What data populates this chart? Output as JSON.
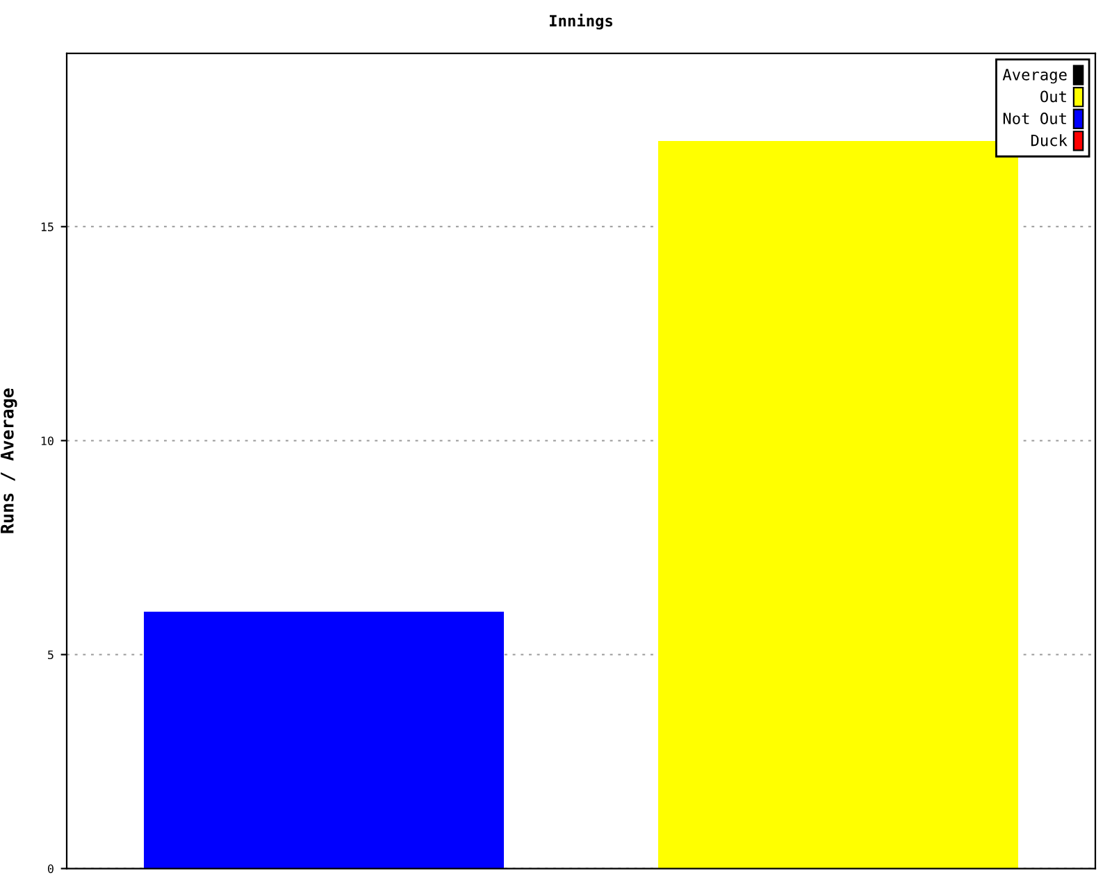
{
  "chart_data": {
    "type": "bar",
    "title": "Innings",
    "ylabel": "Runs / Average",
    "categories": [
      null,
      null
    ],
    "stacked": true,
    "series": [
      {
        "name": "Average",
        "color": "#000000",
        "values": [
          null,
          null
        ]
      },
      {
        "name": "Out",
        "color": "#ffff00",
        "values": [
          null,
          17
        ]
      },
      {
        "name": "Not Out",
        "color": "#0000ff",
        "values": [
          6,
          null
        ]
      },
      {
        "name": "Duck",
        "color": "#ff0000",
        "values": [
          null,
          null
        ]
      }
    ],
    "ylim": [
      0,
      19.05
    ],
    "yticks": [
      0,
      5,
      10,
      15
    ],
    "grid": "y",
    "legend": "top right"
  }
}
